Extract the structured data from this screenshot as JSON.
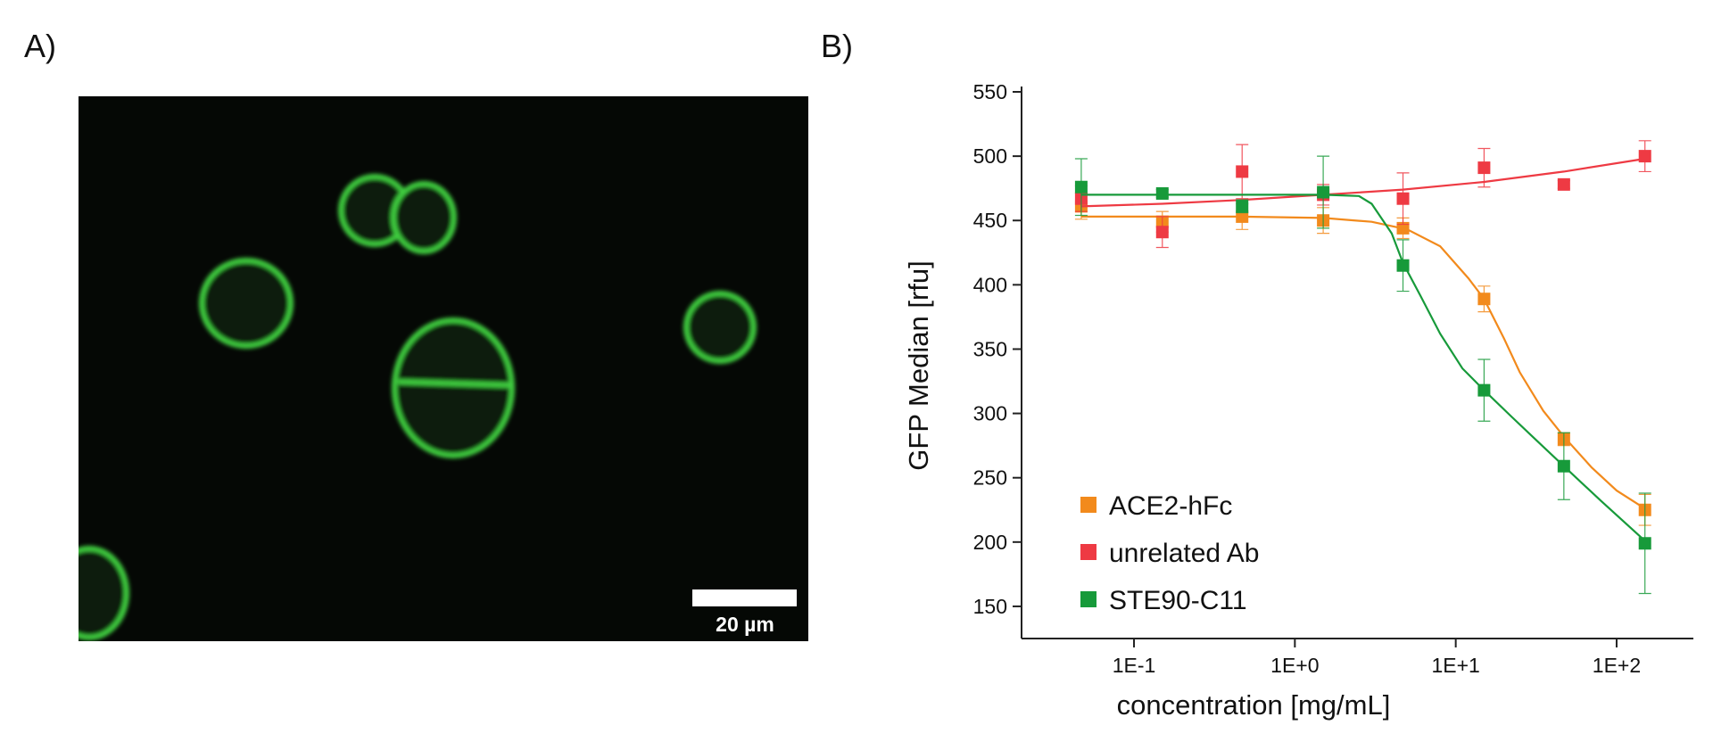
{
  "panel_a": {
    "label": "A)",
    "scale_bar": "20 µm"
  },
  "chart_data": {
    "type": "scatter",
    "label": "B)",
    "x_label": "concentration [mg/mL]",
    "y_label": "GFP Median [rfu]",
    "log_x": true,
    "xlim": [
      0.02,
      300
    ],
    "xticks": [
      {
        "value": 0.1,
        "label": "1E-1"
      },
      {
        "value": 1,
        "label": "1E+0"
      },
      {
        "value": 10,
        "label": "1E+1"
      },
      {
        "value": 100,
        "label": "1E+2"
      }
    ],
    "ylim": [
      125,
      550
    ],
    "yticks": [
      150,
      200,
      250,
      300,
      350,
      400,
      450,
      500,
      550
    ],
    "legend": "lower left",
    "x": [
      0.047,
      0.15,
      0.47,
      1.5,
      4.7,
      15,
      47,
      150
    ],
    "series": [
      {
        "name": "ACE2-hFc",
        "color": "#f28a1c",
        "values": [
          461,
          449,
          453,
          450,
          444,
          389,
          280,
          225
        ],
        "errors": [
          10,
          8,
          10,
          10,
          8,
          10,
          5,
          12
        ],
        "fit_x": [
          0.047,
          0.15,
          0.47,
          1.5,
          3,
          5,
          8,
          12,
          15,
          20,
          25,
          35,
          47,
          70,
          100,
          150
        ],
        "fit": [
          453,
          453,
          453,
          452,
          449,
          443,
          430,
          405,
          389,
          358,
          332,
          302,
          282,
          258,
          240,
          226
        ]
      },
      {
        "name": "unrelated Ab",
        "color": "#ee3a43",
        "values": [
          467,
          441,
          488,
          470,
          467,
          491,
          478,
          500
        ],
        "errors": [
          10,
          12,
          21,
          8,
          20,
          15,
          3,
          12
        ],
        "fit_x": [
          0.047,
          0.15,
          0.47,
          1.5,
          4.7,
          15,
          47,
          150
        ],
        "fit": [
          461,
          463,
          466,
          470,
          474,
          480,
          488,
          498
        ]
      },
      {
        "name": "STE90-C11",
        "color": "#179a3a",
        "values": [
          476,
          471,
          461,
          472,
          415,
          318,
          259,
          199
        ],
        "errors": [
          22,
          3,
          5,
          28,
          20,
          24,
          26,
          39
        ],
        "fit_x": [
          0.047,
          0.15,
          0.47,
          1.5,
          2.5,
          3,
          4,
          4.7,
          6,
          8,
          11,
          15,
          22,
          30,
          47,
          80,
          150
        ],
        "fit": [
          470,
          470,
          470,
          470,
          469,
          463,
          440,
          417,
          392,
          362,
          335,
          318,
          298,
          282,
          259,
          232,
          201
        ]
      }
    ]
  }
}
